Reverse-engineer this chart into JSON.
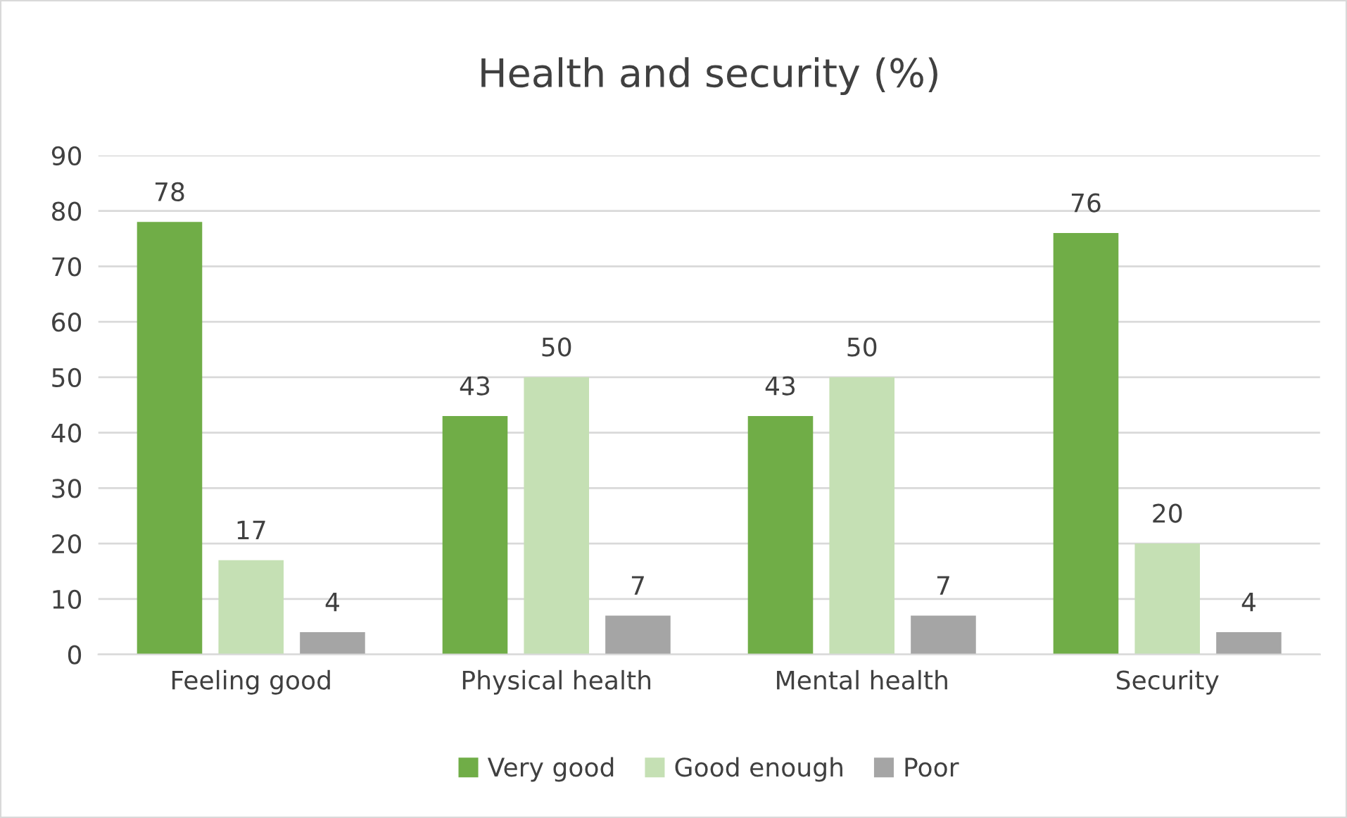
{
  "chart_data": {
    "type": "bar",
    "title": "Health and security (%)",
    "categories": [
      "Feeling good",
      "Physical health",
      "Mental health",
      "Security"
    ],
    "series": [
      {
        "name": "Very good",
        "color": "#70ad47",
        "values": [
          78,
          43,
          43,
          76
        ]
      },
      {
        "name": "Good enough",
        "color": "#c5e0b4",
        "values": [
          17,
          50,
          50,
          20
        ]
      },
      {
        "name": "Poor",
        "color": "#a5a5a5",
        "values": [
          4,
          7,
          7,
          4
        ]
      }
    ],
    "ylim": [
      0,
      90
    ],
    "yticks": [
      0,
      10,
      20,
      30,
      40,
      50,
      60,
      70,
      80,
      90
    ],
    "grid": "y",
    "legend": "bottom",
    "data_labels": true
  }
}
